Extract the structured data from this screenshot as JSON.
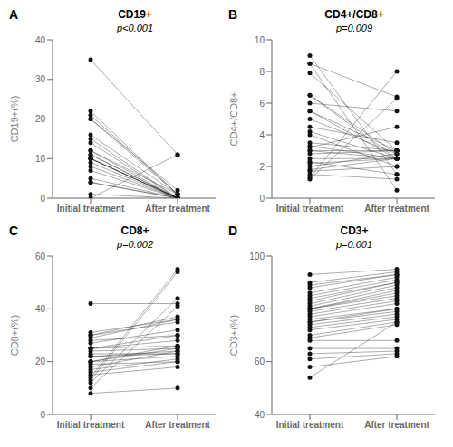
{
  "chart_data": [
    {
      "type": "line",
      "panel_label": "A",
      "title": "CD19+",
      "y_label": "CD19+(%)",
      "annotation": "p<0.001",
      "categories": [
        "Initial treatment",
        "After treatment"
      ],
      "ylim": [
        0,
        40
      ],
      "yticks": [
        0,
        10,
        20,
        30,
        40
      ],
      "grid": false,
      "color": "#111111",
      "marker": "circle",
      "series": [
        {
          "values": [
            35,
            11
          ]
        },
        {
          "values": [
            22,
            1
          ]
        },
        {
          "values": [
            21,
            1
          ]
        },
        {
          "values": [
            20,
            1
          ]
        },
        {
          "values": [
            20,
            2
          ]
        },
        {
          "values": [
            16,
            1
          ]
        },
        {
          "values": [
            15,
            0
          ]
        },
        {
          "values": [
            14,
            0
          ]
        },
        {
          "values": [
            12,
            0
          ]
        },
        {
          "values": [
            12,
            1
          ]
        },
        {
          "values": [
            11,
            0
          ]
        },
        {
          "values": [
            11,
            0
          ]
        },
        {
          "values": [
            10,
            0
          ]
        },
        {
          "values": [
            10,
            0
          ]
        },
        {
          "values": [
            10,
            0
          ]
        },
        {
          "values": [
            10,
            0
          ]
        },
        {
          "values": [
            9,
            0
          ]
        },
        {
          "values": [
            8,
            0
          ]
        },
        {
          "values": [
            7,
            0
          ]
        },
        {
          "values": [
            5,
            0
          ]
        },
        {
          "values": [
            4,
            0
          ]
        },
        {
          "values": [
            4,
            0
          ]
        },
        {
          "values": [
            1,
            0
          ]
        },
        {
          "values": [
            0,
            11
          ]
        }
      ]
    },
    {
      "type": "line",
      "panel_label": "B",
      "title": "CD4+/CD8+",
      "y_label": "CD4+/CD8+",
      "annotation": "p=0.009",
      "categories": [
        "Initial treatment",
        "After treatment"
      ],
      "ylim": [
        0,
        10
      ],
      "yticks": [
        0,
        2,
        4,
        6,
        8,
        10
      ],
      "grid": false,
      "color": "#111111",
      "marker": "circle",
      "series": [
        {
          "values": [
            9.0,
            1.5
          ]
        },
        {
          "values": [
            8.5,
            0.5
          ]
        },
        {
          "values": [
            8.5,
            6.4
          ]
        },
        {
          "values": [
            7.9,
            3.0
          ]
        },
        {
          "values": [
            6.5,
            2.5
          ]
        },
        {
          "values": [
            6.5,
            2.8
          ]
        },
        {
          "values": [
            6.0,
            5.5
          ]
        },
        {
          "values": [
            5.5,
            2.5
          ]
        },
        {
          "values": [
            5.5,
            3.0
          ]
        },
        {
          "values": [
            5.0,
            2.8
          ]
        },
        {
          "values": [
            4.5,
            3.5
          ]
        },
        {
          "values": [
            4.2,
            2.5
          ]
        },
        {
          "values": [
            4.0,
            2.0
          ]
        },
        {
          "values": [
            3.5,
            3.0
          ]
        },
        {
          "values": [
            3.3,
            2.5
          ]
        },
        {
          "values": [
            3.2,
            4.5
          ]
        },
        {
          "values": [
            3.0,
            2.5
          ]
        },
        {
          "values": [
            3.0,
            3.0
          ]
        },
        {
          "values": [
            2.8,
            3.0
          ]
        },
        {
          "values": [
            2.5,
            2.5
          ]
        },
        {
          "values": [
            2.3,
            1.5
          ]
        },
        {
          "values": [
            2.2,
            2.5
          ]
        },
        {
          "values": [
            2.0,
            2.8
          ]
        },
        {
          "values": [
            1.8,
            2.5
          ]
        },
        {
          "values": [
            1.7,
            2.0
          ]
        },
        {
          "values": [
            1.5,
            1.2
          ]
        },
        {
          "values": [
            1.3,
            8.0
          ]
        },
        {
          "values": [
            1.2,
            6.3
          ]
        }
      ]
    },
    {
      "type": "line",
      "panel_label": "C",
      "title": "CD8+",
      "y_label": "CD8+(%)",
      "annotation": "p=0.002",
      "categories": [
        "Initial treatment",
        "After treatment"
      ],
      "ylim": [
        0,
        60
      ],
      "yticks": [
        0,
        20,
        40,
        60
      ],
      "grid": false,
      "color": "#111111",
      "marker": "circle",
      "series": [
        {
          "values": [
            42,
            42
          ]
        },
        {
          "values": [
            31,
            36
          ]
        },
        {
          "values": [
            30,
            37
          ]
        },
        {
          "values": [
            30,
            35
          ]
        },
        {
          "values": [
            29,
            36
          ]
        },
        {
          "values": [
            28,
            30
          ]
        },
        {
          "values": [
            27,
            32
          ]
        },
        {
          "values": [
            25,
            30
          ]
        },
        {
          "values": [
            25,
            26
          ]
        },
        {
          "values": [
            25,
            28
          ]
        },
        {
          "values": [
            24,
            25
          ]
        },
        {
          "values": [
            23,
            23
          ]
        },
        {
          "values": [
            22,
            24
          ]
        },
        {
          "values": [
            22,
            23
          ]
        },
        {
          "values": [
            20,
            26
          ]
        },
        {
          "values": [
            20,
            25
          ]
        },
        {
          "values": [
            20,
            22
          ]
        },
        {
          "values": [
            19,
            20
          ]
        },
        {
          "values": [
            18,
            24
          ]
        },
        {
          "values": [
            17,
            21
          ]
        },
        {
          "values": [
            16,
            20
          ]
        },
        {
          "values": [
            15,
            18
          ]
        },
        {
          "values": [
            14,
            55
          ]
        },
        {
          "values": [
            13,
            54
          ]
        },
        {
          "values": [
            12,
            44
          ]
        },
        {
          "values": [
            10,
            41
          ]
        },
        {
          "values": [
            8,
            10
          ]
        }
      ]
    },
    {
      "type": "line",
      "panel_label": "D",
      "title": "CD3+",
      "y_label": "CD3+(%)",
      "annotation": "p=0.001",
      "categories": [
        "Initial treatment",
        "After treatment"
      ],
      "ylim": [
        40,
        100
      ],
      "yticks": [
        40,
        60,
        80,
        100
      ],
      "grid": false,
      "color": "#111111",
      "marker": "circle",
      "series": [
        {
          "values": [
            93,
            95
          ]
        },
        {
          "values": [
            90,
            94
          ]
        },
        {
          "values": [
            89,
            93
          ]
        },
        {
          "values": [
            88,
            93
          ]
        },
        {
          "values": [
            86,
            92
          ]
        },
        {
          "values": [
            85,
            91
          ]
        },
        {
          "values": [
            84,
            90
          ]
        },
        {
          "values": [
            83,
            90
          ]
        },
        {
          "values": [
            82,
            89
          ]
        },
        {
          "values": [
            81,
            88
          ]
        },
        {
          "values": [
            80,
            87
          ]
        },
        {
          "values": [
            80,
            86
          ]
        },
        {
          "values": [
            80,
            85
          ]
        },
        {
          "values": [
            79,
            84
          ]
        },
        {
          "values": [
            78,
            83
          ]
        },
        {
          "values": [
            77,
            82
          ]
        },
        {
          "values": [
            76,
            80
          ]
        },
        {
          "values": [
            75,
            80
          ]
        },
        {
          "values": [
            75,
            79
          ]
        },
        {
          "values": [
            74,
            78
          ]
        },
        {
          "values": [
            73,
            77
          ]
        },
        {
          "values": [
            72,
            76
          ]
        },
        {
          "values": [
            70,
            75
          ]
        },
        {
          "values": [
            69,
            74
          ]
        },
        {
          "values": [
            68,
            68
          ]
        },
        {
          "values": [
            65,
            65
          ]
        },
        {
          "values": [
            63,
            64
          ]
        },
        {
          "values": [
            61,
            63
          ]
        },
        {
          "values": [
            58,
            62
          ]
        },
        {
          "values": [
            54,
            75
          ]
        }
      ]
    }
  ]
}
